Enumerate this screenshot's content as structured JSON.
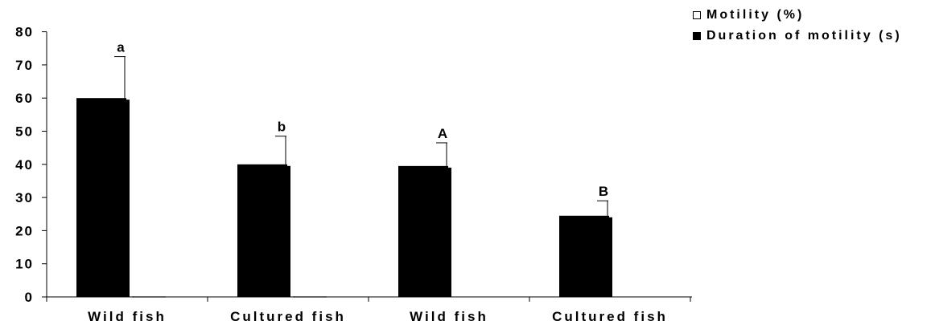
{
  "chart_data": {
    "type": "bar",
    "categories": [
      "Wild fish",
      "Cultured fish",
      "Wild fish",
      "Cultured fish"
    ],
    "series": [
      {
        "name": "Motility (%)",
        "color": "#ffffff",
        "values": [
          0,
          0,
          null,
          null
        ]
      },
      {
        "name": "Duration of motility (s)",
        "color": "#000000",
        "values": [
          60,
          40,
          39.5,
          24.5
        ],
        "errors": [
          12.5,
          8.5,
          7,
          4.5
        ]
      }
    ],
    "significance_labels": [
      "a",
      "b",
      "A",
      "B"
    ],
    "yticks": [
      0,
      10,
      20,
      30,
      40,
      50,
      60,
      70,
      80
    ],
    "ylim": [
      0,
      80
    ],
    "legend_position": "top-right",
    "grid": false
  },
  "legend": {
    "motility_label": "Motility (%)",
    "duration_label": "Duration of motility (s)"
  }
}
